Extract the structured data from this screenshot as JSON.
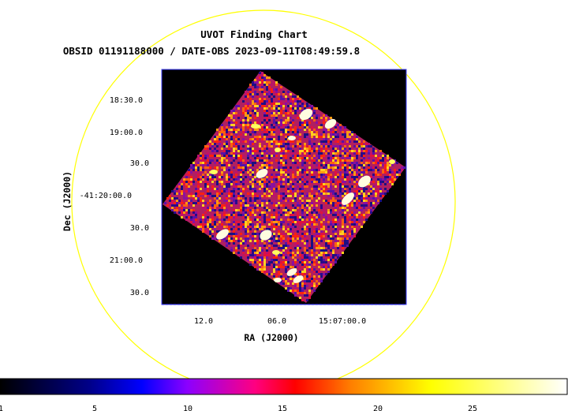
{
  "chart": {
    "title": "UVOT Finding Chart",
    "subtitle": "OBSID 01191188000 / DATE-OBS 2023-09-11T08:49:59.8",
    "xlabel": "RA (J2000)",
    "ylabel": "Dec (J2000)",
    "ra_ticks": [
      "12.0",
      "06.0",
      "15:07:00.0"
    ],
    "dec_ticks": [
      "18:30.0",
      "19:00.0",
      "30.0",
      "-41:20:00.0",
      "30.0",
      "21:00.0",
      "30.0"
    ],
    "colorbar_ticks": [
      "1",
      "5",
      "10",
      "15",
      "20",
      "25"
    ],
    "colormap": [
      "#000000",
      "#00008b",
      "#0000ff",
      "#8b00ff",
      "#ff0080",
      "#ff0000",
      "#ff8000",
      "#ffff00",
      "#ffffff"
    ],
    "frame_color": "#4040ff",
    "circle_color": "#ffff00",
    "background_color": "#000000"
  }
}
